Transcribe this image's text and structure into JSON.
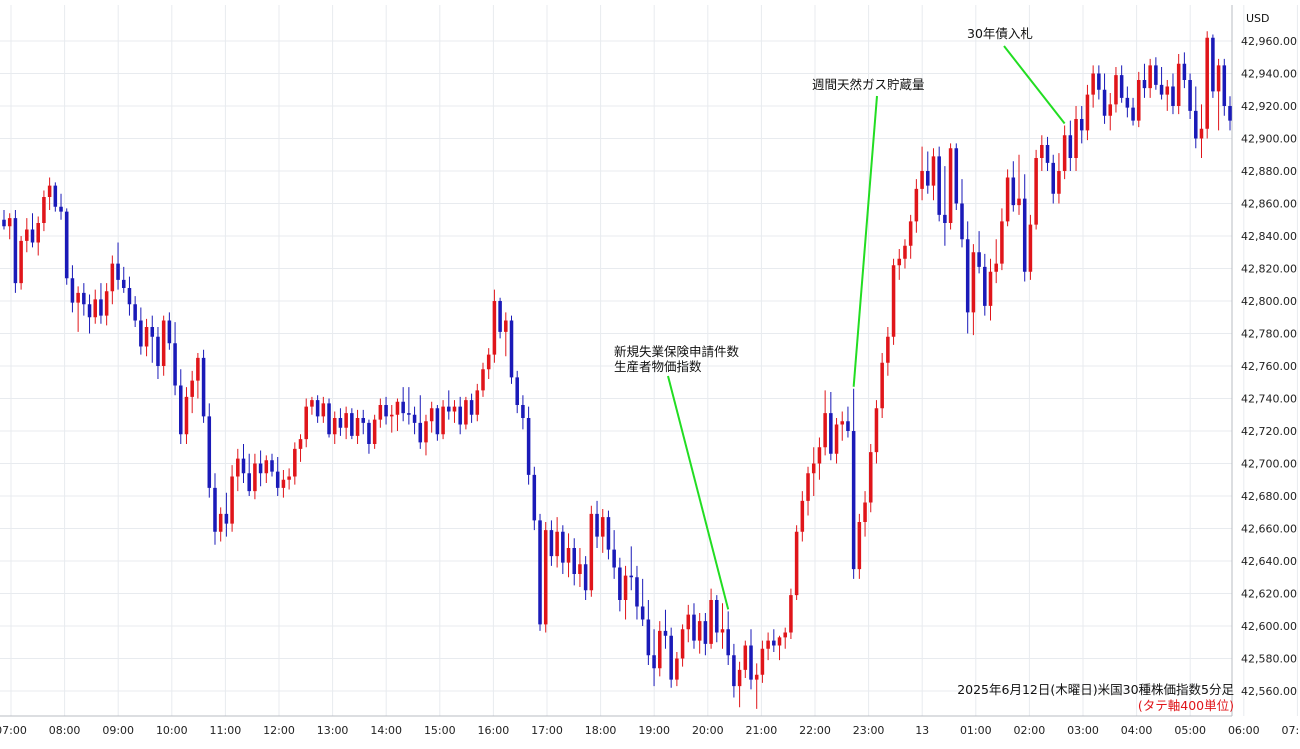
{
  "chart_data": {
    "type": "candlestick",
    "title": "2025年6月12日(木曜日)米国30種株価指数5分足",
    "subtitle": "(タテ軸400単位)",
    "currency": "USD",
    "ylim": [
      42545,
      42975
    ],
    "y_ticks": [
      "42,560.00",
      "42,580.00",
      "42,600.00",
      "42,620.00",
      "42,640.00",
      "42,660.00",
      "42,680.00",
      "42,700.00",
      "42,720.00",
      "42,740.00",
      "42,760.00",
      "42,780.00",
      "42,800.00",
      "42,820.00",
      "42,840.00",
      "42,860.00",
      "42,880.00",
      "42,900.00",
      "42,920.00",
      "42,940.00",
      "42,960.00"
    ],
    "x_ticks": [
      "07:00",
      "08:00",
      "09:00",
      "10:00",
      "11:00",
      "12:00",
      "13:00",
      "14:00",
      "15:00",
      "16:00",
      "17:00",
      "18:00",
      "19:00",
      "20:00",
      "21:00",
      "22:00",
      "23:00",
      "13",
      "01:00",
      "02:00",
      "03:00",
      "04:00",
      "05:00",
      "06:00",
      "07:00"
    ],
    "up_color": "#e0151a",
    "down_color": "#1a1ab8",
    "candles": [
      [
        42850,
        42856,
        42844,
        42846
      ],
      [
        42846,
        42854,
        42838,
        42851
      ],
      [
        42851,
        42856,
        42805,
        42811
      ],
      [
        42811,
        42840,
        42807,
        42837
      ],
      [
        42837,
        42851,
        42830,
        42844
      ],
      [
        42844,
        42854,
        42833,
        42836
      ],
      [
        42836,
        42852,
        42828,
        42848
      ],
      [
        42848,
        42868,
        42843,
        42864
      ],
      [
        42864,
        42876,
        42856,
        42871
      ],
      [
        42871,
        42873,
        42855,
        42858
      ],
      [
        42858,
        42866,
        42850,
        42855
      ],
      [
        42855,
        42857,
        42810,
        42814
      ],
      [
        42814,
        42822,
        42793,
        42799
      ],
      [
        42799,
        42809,
        42781,
        42805
      ],
      [
        42805,
        42811,
        42791,
        42798
      ],
      [
        42798,
        42804,
        42780,
        42790
      ],
      [
        42790,
        42807,
        42786,
        42801
      ],
      [
        42801,
        42811,
        42786,
        42791
      ],
      [
        42791,
        42811,
        42785,
        42806
      ],
      [
        42806,
        42828,
        42798,
        42823
      ],
      [
        42823,
        42836,
        42807,
        42813
      ],
      [
        42813,
        42821,
        42805,
        42808
      ],
      [
        42808,
        42815,
        42791,
        42798
      ],
      [
        42798,
        42803,
        42784,
        42788
      ],
      [
        42788,
        42796,
        42767,
        42772
      ],
      [
        42772,
        42789,
        42766,
        42784
      ],
      [
        42784,
        42791,
        42762,
        42778
      ],
      [
        42778,
        42784,
        42752,
        42760
      ],
      [
        42760,
        42791,
        42754,
        42788
      ],
      [
        42788,
        42793,
        42770,
        42774
      ],
      [
        42774,
        42787,
        42742,
        42748
      ],
      [
        42748,
        42758,
        42712,
        42718
      ],
      [
        42718,
        42747,
        42712,
        42741
      ],
      [
        42741,
        42757,
        42731,
        42751
      ],
      [
        42751,
        42768,
        42740,
        42765
      ],
      [
        42765,
        42770,
        42725,
        42729
      ],
      [
        42729,
        42737,
        42679,
        42685
      ],
      [
        42685,
        42694,
        42650,
        42658
      ],
      [
        42658,
        42673,
        42652,
        42669
      ],
      [
        42669,
        42682,
        42655,
        42663
      ],
      [
        42663,
        42699,
        42658,
        42692
      ],
      [
        42692,
        42709,
        42683,
        42703
      ],
      [
        42703,
        42712,
        42688,
        42694
      ],
      [
        42694,
        42706,
        42680,
        42683
      ],
      [
        42683,
        42706,
        42678,
        42700
      ],
      [
        42700,
        42708,
        42686,
        42694
      ],
      [
        42694,
        42705,
        42688,
        42702
      ],
      [
        42702,
        42706,
        42692,
        42695
      ],
      [
        42695,
        42704,
        42680,
        42685
      ],
      [
        42685,
        42696,
        42679,
        42690
      ],
      [
        42690,
        42697,
        42684,
        42692
      ],
      [
        42692,
        42713,
        42687,
        42709
      ],
      [
        42709,
        42718,
        42701,
        42715
      ],
      [
        42715,
        42740,
        42710,
        42735
      ],
      [
        42735,
        42741,
        42730,
        42739
      ],
      [
        42739,
        42742,
        42725,
        42729
      ],
      [
        42729,
        42741,
        42725,
        42737
      ],
      [
        42737,
        42740,
        42716,
        42718
      ],
      [
        42718,
        42732,
        42712,
        42728
      ],
      [
        42728,
        42734,
        42717,
        42722
      ],
      [
        42722,
        42735,
        42715,
        42731
      ],
      [
        42731,
        42734,
        42715,
        42717
      ],
      [
        42717,
        42733,
        42712,
        42728
      ],
      [
        42728,
        42733,
        42718,
        42725
      ],
      [
        42725,
        42727,
        42706,
        42712
      ],
      [
        42712,
        42730,
        42709,
        42727
      ],
      [
        42727,
        42740,
        42722,
        42736
      ],
      [
        42736,
        42741,
        42724,
        42729
      ],
      [
        42729,
        42736,
        42719,
        42730
      ],
      [
        42730,
        42740,
        42720,
        42738
      ],
      [
        42738,
        42747,
        42726,
        42731
      ],
      [
        42731,
        42747,
        42724,
        42730
      ],
      [
        42730,
        42735,
        42718,
        42725
      ],
      [
        42725,
        42742,
        42709,
        42713
      ],
      [
        42713,
        42730,
        42705,
        42726
      ],
      [
        42726,
        42738,
        42719,
        42734
      ],
      [
        42734,
        42736,
        42714,
        42718
      ],
      [
        42718,
        42739,
        42715,
        42735
      ],
      [
        42735,
        42745,
        42727,
        42732
      ],
      [
        42732,
        42739,
        42725,
        42735
      ],
      [
        42735,
        42741,
        42718,
        42724
      ],
      [
        42724,
        42741,
        42721,
        42739
      ],
      [
        42739,
        42743,
        42725,
        42730
      ],
      [
        42730,
        42749,
        42726,
        42745
      ],
      [
        42745,
        42762,
        42741,
        42758
      ],
      [
        42758,
        42771,
        42752,
        42767
      ],
      [
        42767,
        42807,
        42762,
        42800
      ],
      [
        42800,
        42802,
        42777,
        42781
      ],
      [
        42781,
        42793,
        42766,
        42788
      ],
      [
        42788,
        42791,
        42749,
        42753
      ],
      [
        42753,
        42757,
        42731,
        42736
      ],
      [
        42736,
        42742,
        42721,
        42728
      ],
      [
        42728,
        42735,
        42687,
        42693
      ],
      [
        42693,
        42698,
        42659,
        42665
      ],
      [
        42665,
        42669,
        42597,
        42601
      ],
      [
        42601,
        42664,
        42596,
        42659
      ],
      [
        42659,
        42665,
        42637,
        42643
      ],
      [
        42643,
        42667,
        42636,
        42658
      ],
      [
        42658,
        42662,
        42632,
        42639
      ],
      [
        42639,
        42657,
        42630,
        42648
      ],
      [
        42648,
        42654,
        42625,
        42632
      ],
      [
        42632,
        42648,
        42624,
        42638
      ],
      [
        42638,
        42643,
        42616,
        42622
      ],
      [
        42622,
        42674,
        42618,
        42669
      ],
      [
        42669,
        42677,
        42648,
        42655
      ],
      [
        42655,
        42672,
        42645,
        42667
      ],
      [
        42667,
        42671,
        42641,
        42647
      ],
      [
        42647,
        42659,
        42629,
        42636
      ],
      [
        42636,
        42642,
        42609,
        42616
      ],
      [
        42616,
        42637,
        42604,
        42631
      ],
      [
        42631,
        42649,
        42622,
        42630
      ],
      [
        42630,
        42637,
        42604,
        42612
      ],
      [
        42612,
        42629,
        42600,
        42604
      ],
      [
        42604,
        42616,
        42576,
        42582
      ],
      [
        42582,
        42598,
        42563,
        42574
      ],
      [
        42574,
        42603,
        42569,
        42597
      ],
      [
        42597,
        42610,
        42586,
        42594
      ],
      [
        42594,
        42599,
        42562,
        42567
      ],
      [
        42567,
        42584,
        42563,
        42580
      ],
      [
        42580,
        42601,
        42575,
        42598
      ],
      [
        42598,
        42613,
        42590,
        42607
      ],
      [
        42607,
        42614,
        42586,
        42591
      ],
      [
        42591,
        42608,
        42583,
        42603
      ],
      [
        42603,
        42608,
        42582,
        42589
      ],
      [
        42589,
        42623,
        42586,
        42616
      ],
      [
        42616,
        42619,
        42590,
        42596
      ],
      [
        42596,
        42614,
        42586,
        42598
      ],
      [
        42598,
        42609,
        42576,
        42582
      ],
      [
        42582,
        42589,
        42556,
        42563
      ],
      [
        42563,
        42578,
        42550,
        42573
      ],
      [
        42573,
        42591,
        42568,
        42588
      ],
      [
        42588,
        42598,
        42561,
        42567
      ],
      [
        42567,
        42577,
        42549,
        42570
      ],
      [
        42570,
        42591,
        42565,
        42586
      ],
      [
        42586,
        42596,
        42579,
        42591
      ],
      [
        42591,
        42598,
        42584,
        42588
      ],
      [
        42588,
        42594,
        42579,
        42593
      ],
      [
        42593,
        42599,
        42586,
        42596
      ],
      [
        42596,
        42623,
        42592,
        42619
      ],
      [
        42619,
        42662,
        42616,
        42658
      ],
      [
        42658,
        42683,
        42652,
        42677
      ],
      [
        42677,
        42698,
        42668,
        42694
      ],
      [
        42694,
        42710,
        42680,
        42700
      ],
      [
        42700,
        42716,
        42690,
        42710
      ],
      [
        42710,
        42745,
        42705,
        42731
      ],
      [
        42731,
        42744,
        42702,
        42706
      ],
      [
        42706,
        42728,
        42700,
        42724
      ],
      [
        42724,
        42732,
        42714,
        42726
      ],
      [
        42726,
        42735,
        42716,
        42720
      ],
      [
        42720,
        42746,
        42629,
        42635
      ],
      [
        42635,
        42669,
        42629,
        42664
      ],
      [
        42664,
        42683,
        42655,
        42676
      ],
      [
        42676,
        42712,
        42670,
        42707
      ],
      [
        42707,
        42739,
        42700,
        42734
      ],
      [
        42734,
        42768,
        42728,
        42762
      ],
      [
        42762,
        42784,
        42754,
        42778
      ],
      [
        42778,
        42826,
        42773,
        42822
      ],
      [
        42822,
        42832,
        42813,
        42826
      ],
      [
        42826,
        42838,
        42820,
        42834
      ],
      [
        42834,
        42853,
        42826,
        42849
      ],
      [
        42849,
        42875,
        42842,
        42869
      ],
      [
        42869,
        42895,
        42862,
        42880
      ],
      [
        42880,
        42892,
        42866,
        42871
      ],
      [
        42871,
        42894,
        42862,
        42889
      ],
      [
        42889,
        42895,
        42849,
        42853
      ],
      [
        42853,
        42883,
        42834,
        42848
      ],
      [
        42848,
        42897,
        42844,
        42894
      ],
      [
        42894,
        42897,
        42856,
        42860
      ],
      [
        42860,
        42875,
        42833,
        42838
      ],
      [
        42838,
        42849,
        42780,
        42793
      ],
      [
        42793,
        42835,
        42779,
        42830
      ],
      [
        42830,
        42843,
        42817,
        42821
      ],
      [
        42821,
        42829,
        42791,
        42797
      ],
      [
        42797,
        42826,
        42788,
        42818
      ],
      [
        42818,
        42838,
        42811,
        42823
      ],
      [
        42823,
        42857,
        42819,
        42849
      ],
      [
        42849,
        42881,
        42846,
        42876
      ],
      [
        42876,
        42886,
        42855,
        42859
      ],
      [
        42859,
        42890,
        42853,
        42863
      ],
      [
        42863,
        42878,
        42812,
        42818
      ],
      [
        42818,
        42853,
        42813,
        42847
      ],
      [
        42847,
        42893,
        42844,
        42888
      ],
      [
        42888,
        42902,
        42880,
        42896
      ],
      [
        42896,
        42901,
        42880,
        42885
      ],
      [
        42885,
        42890,
        42860,
        42866
      ],
      [
        42866,
        42891,
        42860,
        42880
      ],
      [
        42880,
        42908,
        42875,
        42902
      ],
      [
        42902,
        42911,
        42880,
        42888
      ],
      [
        42888,
        42920,
        42880,
        42912
      ],
      [
        42912,
        42920,
        42897,
        42905
      ],
      [
        42905,
        42933,
        42899,
        42927
      ],
      [
        42927,
        42945,
        42919,
        42940
      ],
      [
        42940,
        42945,
        42924,
        42930
      ],
      [
        42930,
        42940,
        42909,
        42914
      ],
      [
        42914,
        42928,
        42905,
        42921
      ],
      [
        42921,
        42944,
        42916,
        42939
      ],
      [
        42939,
        42945,
        42922,
        42925
      ],
      [
        42925,
        42932,
        42913,
        42919
      ],
      [
        42919,
        42925,
        42908,
        42911
      ],
      [
        42911,
        42941,
        42907,
        42936
      ],
      [
        42936,
        42946,
        42925,
        42931
      ],
      [
        42931,
        42949,
        42925,
        42945
      ],
      [
        42945,
        42950,
        42930,
        42933
      ],
      [
        42933,
        42944,
        42924,
        42927
      ],
      [
        42927,
        42936,
        42917,
        42932
      ],
      [
        42932,
        42940,
        42915,
        42920
      ],
      [
        42920,
        42952,
        42915,
        42946
      ],
      [
        42946,
        42953,
        42931,
        42936
      ],
      [
        42936,
        42940,
        42912,
        42917
      ],
      [
        42917,
        42932,
        42894,
        42900
      ],
      [
        42900,
        42921,
        42888,
        42906
      ],
      [
        42906,
        42966,
        42900,
        42962
      ],
      [
        42962,
        42964,
        42925,
        42929
      ],
      [
        42929,
        42949,
        42905,
        42945
      ],
      [
        42945,
        42949,
        42914,
        42920
      ],
      [
        42920,
        42926,
        42905,
        42911
      ]
    ],
    "annotations": [
      {
        "lines": [
          "新規失業保険申請件数",
          "生産者物価指数"
        ],
        "candle": 127
      },
      {
        "lines": [
          "週間天然ガス貯蔵量"
        ],
        "candle": 149
      },
      {
        "lines": [
          "30年債入札"
        ],
        "candle": 186
      }
    ]
  }
}
